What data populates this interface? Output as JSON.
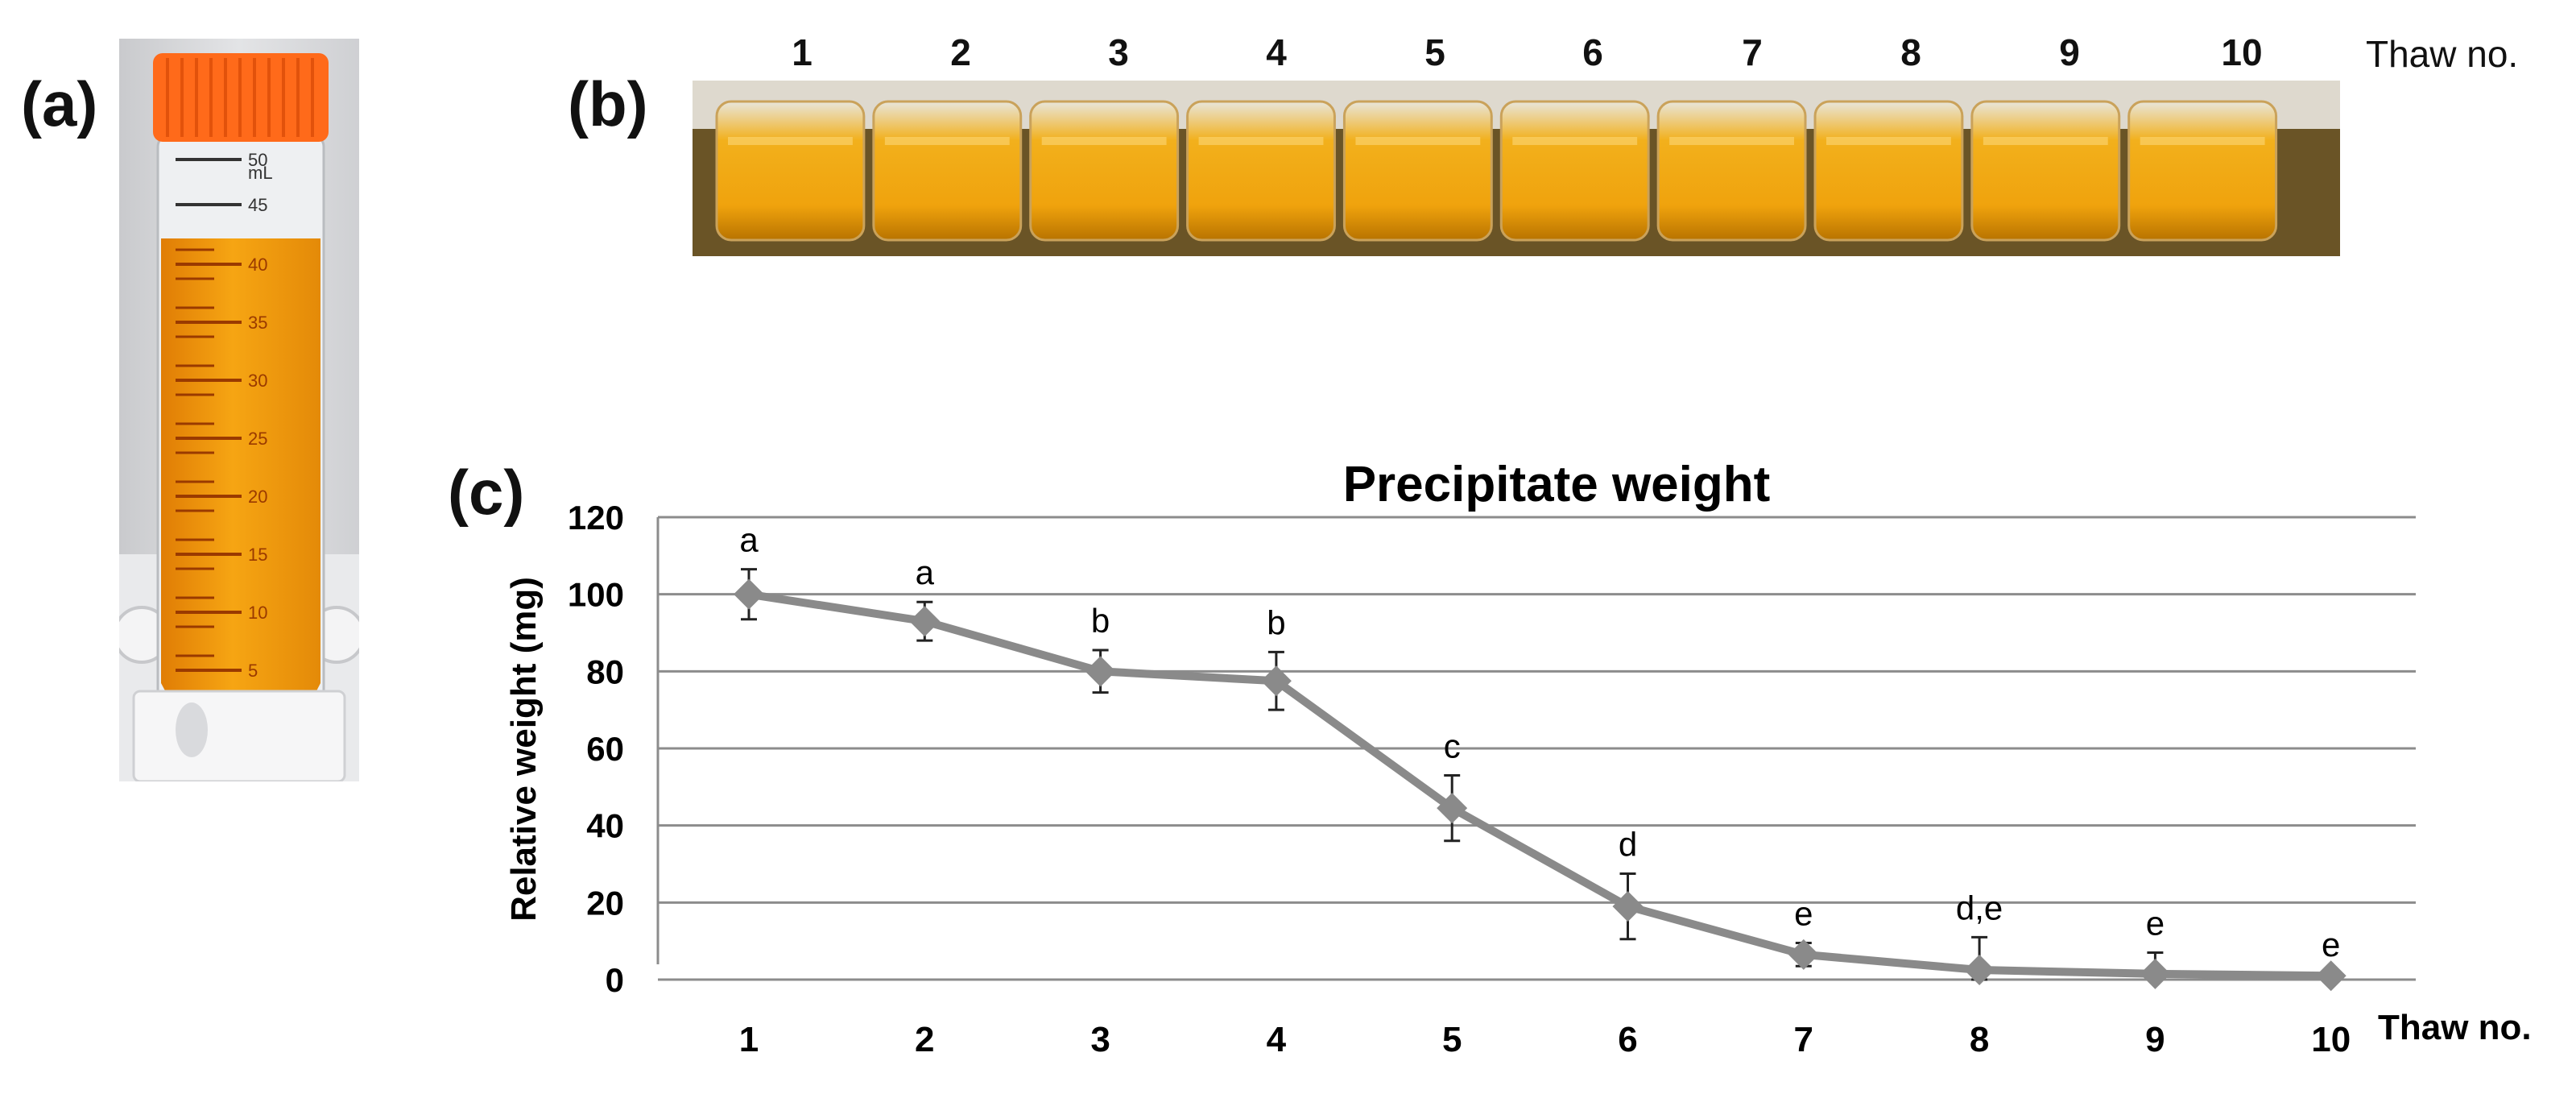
{
  "panels": {
    "a": {
      "label": "(a)",
      "tube_marks": [
        "50",
        "mL",
        "45",
        "40",
        "35",
        "30",
        "25",
        "20",
        "15",
        "10",
        "5"
      ]
    },
    "b": {
      "label": "(b)",
      "vial_numbers": [
        "1",
        "2",
        "3",
        "4",
        "5",
        "6",
        "7",
        "8",
        "9",
        "10"
      ],
      "axis_label": "Thaw no."
    },
    "c": {
      "label": "(c)"
    }
  },
  "colors": {
    "line": "#8a8a8a",
    "grid": "#8c8c8c",
    "liquid": "#f5a00c",
    "cap": "#ff6a1a"
  },
  "chart_data": {
    "type": "line",
    "title": "Precipitate weight",
    "xlabel": "Thaw no.",
    "ylabel": "Relative weight (mg)",
    "x": [
      1,
      2,
      3,
      4,
      5,
      6,
      7,
      8,
      9,
      10
    ],
    "series": [
      {
        "values": [
          100,
          93,
          80,
          77.5,
          44.5,
          19,
          6.5,
          2.5,
          1.5,
          1
        ],
        "error": [
          6.5,
          5,
          5.5,
          7.5,
          8.5,
          8.5,
          3,
          8.5,
          5.5,
          0.5
        ]
      }
    ],
    "significance_letters": [
      "a",
      "a",
      "b",
      "b",
      "c",
      "d",
      "e",
      "d,e",
      "e",
      "e"
    ],
    "ylim": [
      0,
      120
    ],
    "yticks": [
      0,
      20,
      40,
      60,
      80,
      100,
      120
    ],
    "grid": true,
    "legend": "none"
  }
}
